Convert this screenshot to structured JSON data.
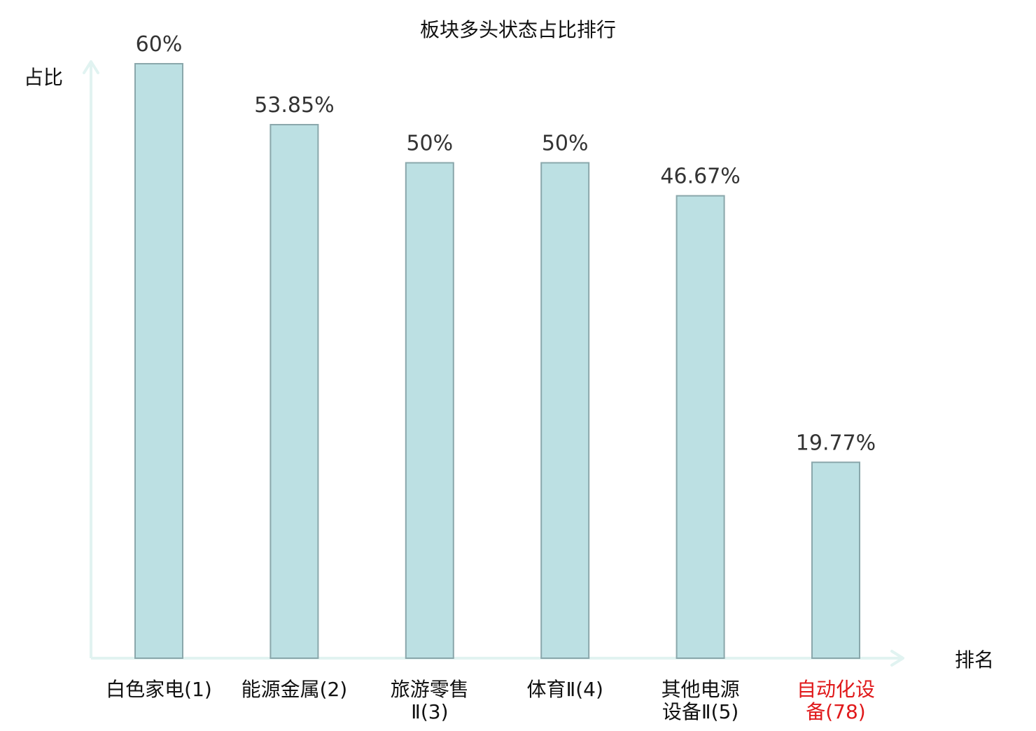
{
  "chart_data": {
    "type": "bar",
    "title": "板块多头状态占比排行",
    "xlabel": "排名",
    "ylabel": "占比",
    "categories": [
      [
        "白色家电(1)"
      ],
      [
        "能源金属(2)"
      ],
      [
        "旅游零售",
        "Ⅱ(3)"
      ],
      [
        "体育Ⅱ(4)"
      ],
      [
        "其他电源",
        "设备Ⅱ(5)"
      ],
      [
        "自动化设",
        "备(78)"
      ]
    ],
    "values": [
      60,
      53.85,
      50,
      50,
      46.67,
      19.77
    ],
    "value_labels": [
      "60%",
      "53.85%",
      "50%",
      "50%",
      "46.67%",
      "19.77%"
    ],
    "highlight_index": 5,
    "ylim": [
      0,
      60
    ],
    "grid": false,
    "legend": "none",
    "colors": {
      "bar_fill": "#bce0e3",
      "bar_stroke": "#8aa7ab",
      "axis": "#e1f3f1",
      "text": "#111111",
      "value_text": "#333333",
      "highlight_text": "#e0191b"
    }
  }
}
